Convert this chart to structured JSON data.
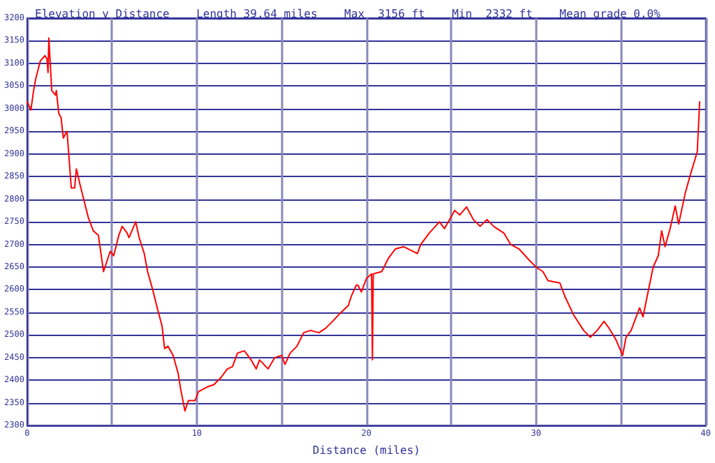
{
  "chart_data": {
    "type": "line",
    "title": "Elevation v Distance    Length 39.64 miles    Max  3156 ft    Min  2332 ft    Mean grade 0.0%",
    "xlabel": "Distance (miles)",
    "series": [
      {
        "color": "#ff0000",
        "x": [
          0,
          0.22,
          0.36,
          0.5,
          0.77,
          1.04,
          1.17,
          1.23,
          1.28,
          1.34,
          1.45,
          1.67,
          1.72,
          1.86,
          2.0,
          2.13,
          2.27,
          2.35,
          2.49,
          2.6,
          2.8,
          2.9,
          3.1,
          3.3,
          3.6,
          3.9,
          4.2,
          4.5,
          4.9,
          5.1,
          5.4,
          5.6,
          5.9,
          6.0,
          6.4,
          6.6,
          6.9,
          7.1,
          7.4,
          7.7,
          7.95,
          8.1,
          8.3,
          8.6,
          8.9,
          9.05,
          9.3,
          9.5,
          9.9,
          10.1,
          10.6,
          11.0,
          11.4,
          11.8,
          12.1,
          12.4,
          12.8,
          13.2,
          13.5,
          13.7,
          14.2,
          14.6,
          15.0,
          15.2,
          15.5,
          15.9,
          16.3,
          16.7,
          17.2,
          17.6,
          18.0,
          18.5,
          18.93,
          19.1,
          19.4,
          19.5,
          19.7,
          20.0,
          20.3,
          20.35,
          20.4,
          20.9,
          21.3,
          21.7,
          22.2,
          23.0,
          23.2,
          23.7,
          24.3,
          24.6,
          25.2,
          25.5,
          25.9,
          26.3,
          26.7,
          27.1,
          27.5,
          28.1,
          28.5,
          29.0,
          29.6,
          30.0,
          30.4,
          30.7,
          31.4,
          31.7,
          32.2,
          32.8,
          33.2,
          33.6,
          34.0,
          34.3,
          34.7,
          35.1,
          35.3,
          35.6,
          36.1,
          36.3,
          36.9,
          37.2,
          37.4,
          37.6,
          37.9,
          38.2,
          38.4,
          38.8,
          39.1,
          39.5,
          39.64
        ],
        "values": [
          3015,
          2997,
          3035,
          3065,
          3105,
          3117,
          3110,
          3080,
          3156,
          3115,
          3040,
          3030,
          3040,
          2990,
          2980,
          2935,
          2945,
          2950,
          2880,
          2825,
          2825,
          2867,
          2835,
          2805,
          2760,
          2730,
          2720,
          2640,
          2685,
          2675,
          2720,
          2740,
          2725,
          2715,
          2750,
          2715,
          2680,
          2640,
          2600,
          2555,
          2520,
          2470,
          2475,
          2455,
          2415,
          2380,
          2332,
          2355,
          2355,
          2375,
          2385,
          2390,
          2405,
          2425,
          2430,
          2460,
          2465,
          2445,
          2425,
          2445,
          2425,
          2450,
          2455,
          2435,
          2460,
          2475,
          2505,
          2510,
          2505,
          2515,
          2530,
          2550,
          2565,
          2585,
          2610,
          2610,
          2595,
          2625,
          2635,
          2445,
          2635,
          2640,
          2670,
          2690,
          2695,
          2680,
          2700,
          2725,
          2750,
          2735,
          2775,
          2765,
          2783,
          2755,
          2740,
          2755,
          2740,
          2725,
          2700,
          2690,
          2665,
          2650,
          2640,
          2620,
          2615,
          2585,
          2545,
          2510,
          2495,
          2510,
          2530,
          2515,
          2490,
          2455,
          2495,
          2510,
          2560,
          2540,
          2650,
          2675,
          2730,
          2695,
          2735,
          2785,
          2745,
          2815,
          2855,
          2905,
          3015
        ]
      }
    ],
    "xlim": [
      0,
      40
    ],
    "xticks": [
      0,
      {
        "value": 5,
        "label": null
      },
      10,
      {
        "value": 15,
        "label": null
      },
      20,
      {
        "value": 25,
        "label": null
      },
      30,
      {
        "value": 35,
        "label": null
      },
      40
    ],
    "ylim": [
      2300,
      3200
    ],
    "yticks": [
      2300,
      2350,
      2400,
      2450,
      2500,
      2550,
      2600,
      2650,
      2700,
      2750,
      2800,
      2850,
      2900,
      2950,
      3000,
      3050,
      3100,
      3150,
      3200
    ],
    "grid": true,
    "marker": "none",
    "line_style": "solid"
  }
}
